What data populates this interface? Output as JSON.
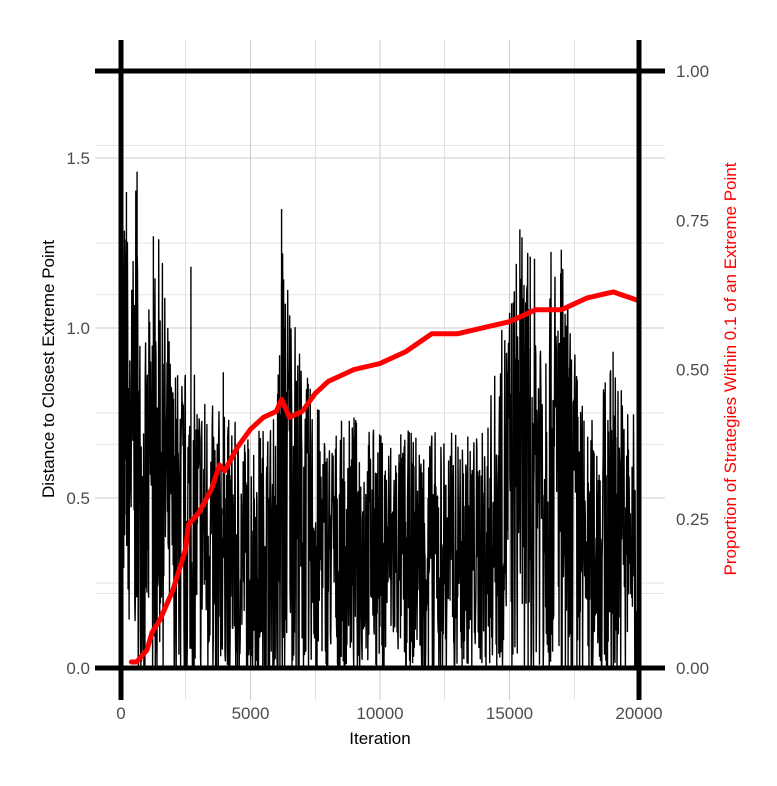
{
  "chart_data": {
    "type": "line",
    "title": "",
    "xlabel": "Iteration",
    "ylabel": "Distance to Closest Extreme Point",
    "y2label": "Proportion of Strategies Within 0.1 of an Extreme Point",
    "xlim": [
      0,
      20000
    ],
    "ylim": [
      0,
      1.78
    ],
    "y2lim": [
      0,
      1.0
    ],
    "x_ticks": [
      0,
      5000,
      10000,
      15000,
      20000
    ],
    "x_tick_labels": [
      "0",
      "5000",
      "10000",
      "15000",
      "20000"
    ],
    "y_ticks": [
      0,
      0.5,
      1.0,
      1.5
    ],
    "y_tick_labels": [
      "0.0",
      "0.5",
      "1.0",
      "1.5"
    ],
    "y2_ticks": [
      0,
      0.25,
      0.5,
      0.75,
      1.0
    ],
    "y2_tick_labels": [
      "0.00",
      "0.25",
      "0.50",
      "0.75",
      "1.00"
    ],
    "grid": true,
    "colors": {
      "distance": "#000000",
      "proportion": "#ff0000",
      "secondary_axis_title": "#ff0000",
      "grid": "#cccccc"
    },
    "series": [
      {
        "axis": "left",
        "description": "noisy distance trace; values approximate, sampled sparsely",
        "x": [
          0,
          100,
          200,
          300,
          400,
          500,
          600,
          700,
          800,
          1000,
          1200,
          1500,
          2000,
          2500,
          3000,
          3500,
          4000,
          4500,
          5000,
          6000,
          6200,
          7000,
          8000,
          9000,
          10000,
          12000,
          14000,
          15400,
          15800,
          17000,
          18000,
          19000,
          20000
        ],
        "envelope_high": [
          0.95,
          1.4,
          1.3,
          1.35,
          1.2,
          1.3,
          1.45,
          1.1,
          1.0,
          0.95,
          1.25,
          1.27,
          0.9,
          0.9,
          0.85,
          0.8,
          0.75,
          0.72,
          0.7,
          0.75,
          1.35,
          0.9,
          0.7,
          0.75,
          0.7,
          0.7,
          0.7,
          1.29,
          1.21,
          1.23,
          0.7,
          0.93,
          0.7
        ],
        "envelope_low": [
          0.5,
          0.3,
          0.2,
          0.15,
          0.1,
          0.05,
          0.02,
          0,
          0,
          0,
          0,
          0,
          0,
          0,
          0,
          0,
          0,
          0,
          0,
          0,
          0,
          0,
          0,
          0,
          0,
          0,
          0,
          0,
          0,
          0,
          0,
          0,
          0
        ]
      },
      {
        "axis": "right",
        "x": [
          400,
          600,
          800,
          1000,
          1200,
          1500,
          2000,
          2500,
          2600,
          3000,
          3500,
          3800,
          4000,
          4500,
          5000,
          5500,
          6000,
          6200,
          6500,
          7000,
          7500,
          8000,
          8500,
          9000,
          10000,
          11000,
          12000,
          13000,
          14000,
          15000,
          15500,
          16000,
          17000,
          18000,
          19000,
          20000
        ],
        "values": [
          0.01,
          0.01,
          0.02,
          0.03,
          0.06,
          0.08,
          0.13,
          0.2,
          0.24,
          0.26,
          0.3,
          0.34,
          0.33,
          0.37,
          0.4,
          0.42,
          0.43,
          0.45,
          0.42,
          0.43,
          0.46,
          0.48,
          0.49,
          0.5,
          0.51,
          0.53,
          0.56,
          0.56,
          0.57,
          0.58,
          0.59,
          0.6,
          0.6,
          0.62,
          0.63,
          0.615
        ]
      }
    ]
  }
}
